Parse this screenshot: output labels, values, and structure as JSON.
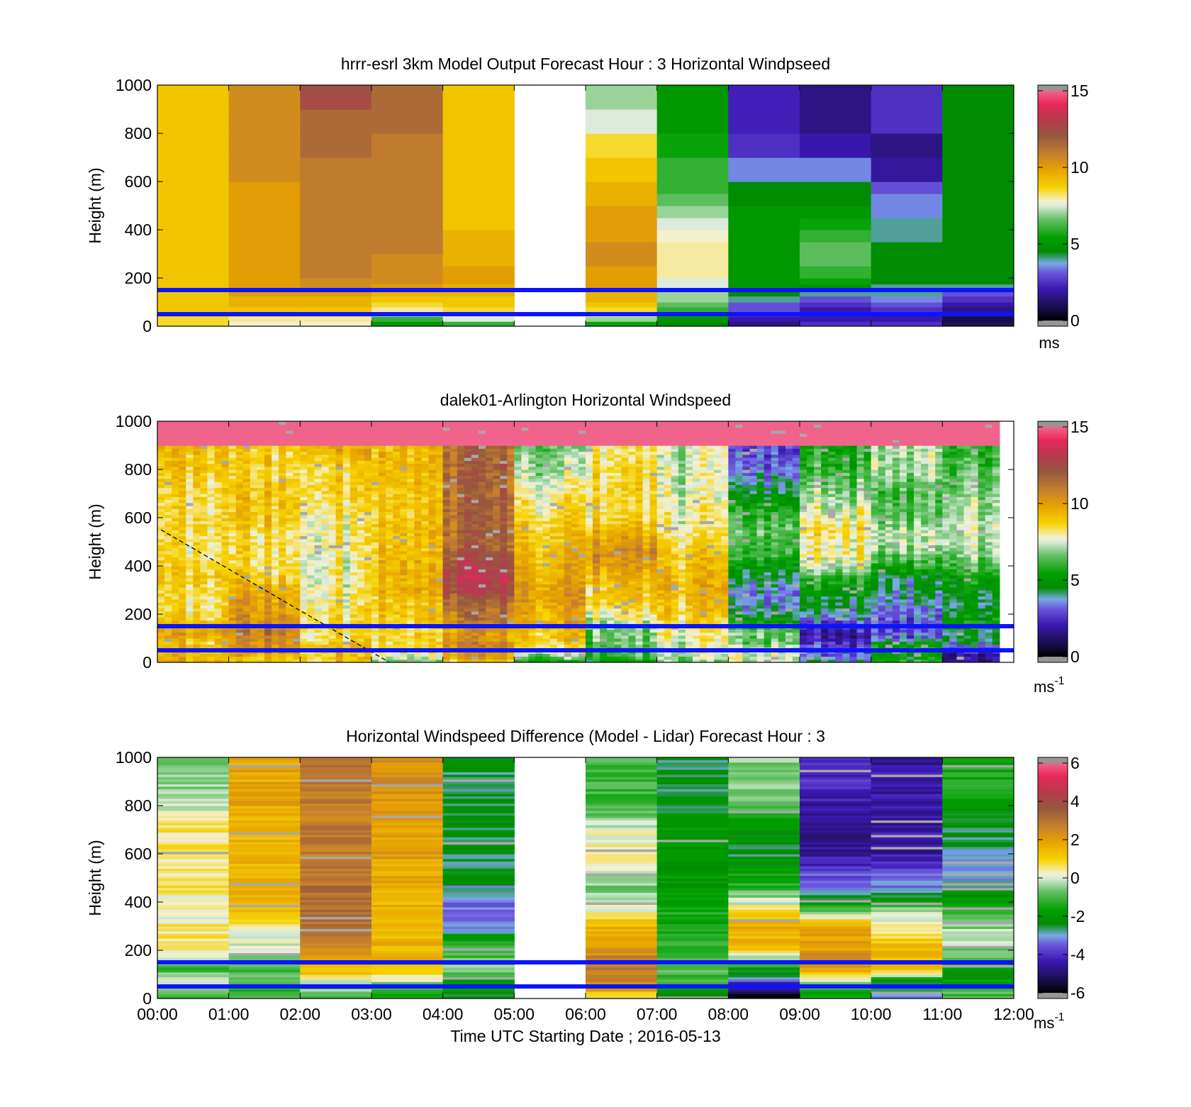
{
  "figure": {
    "xlabel": "Time UTC  Starting Date ; 2016-05-13",
    "x_tick_labels": [
      "00:00",
      "01:00",
      "02:00",
      "03:00",
      "04:00",
      "05:00",
      "06:00",
      "07:00",
      "08:00",
      "09:00",
      "10:00",
      "11:00",
      "12:00"
    ]
  },
  "chart_data": [
    {
      "type": "heatmap",
      "title": "hrrr-esrl 3km Model Output   Forecast Hour : 3 Horizontal Windpseed",
      "ylabel": "Height (m)",
      "xlim": [
        0,
        12
      ],
      "ylim": [
        0,
        1000
      ],
      "y_tick_labels": [
        "0",
        "200",
        "400",
        "600",
        "800",
        "1000"
      ],
      "colorbar": {
        "range": [
          0,
          15
        ],
        "tick_labels": [
          "0",
          "5",
          "10",
          "15"
        ],
        "unit": "ms"
      },
      "reference_lines_m": [
        50,
        150
      ],
      "missing_hours": [
        5
      ],
      "grid_levels_m": [
        0,
        20,
        40,
        60,
        80,
        100,
        125,
        150,
        175,
        200,
        250,
        300,
        350,
        400,
        450,
        500,
        550,
        600,
        700,
        800,
        900,
        1000
      ],
      "hourly_profiles": [
        [
          8.5,
          8.5,
          8.8,
          9,
          9,
          9,
          9,
          9,
          9,
          9,
          9,
          9,
          9,
          9,
          9,
          9,
          9,
          9,
          9,
          9,
          9
        ],
        [
          7.8,
          8,
          8.5,
          9,
          9.5,
          9.5,
          10,
          10,
          10,
          10,
          10,
          10,
          10,
          10,
          10,
          10,
          10,
          10.5,
          10.5,
          10.5,
          10.5
        ],
        [
          7.8,
          8,
          8.3,
          9,
          9.5,
          9.5,
          10,
          10.5,
          10.5,
          11,
          11,
          11,
          11,
          11,
          11,
          11,
          11,
          11,
          11.5,
          11.5,
          12.5
        ],
        [
          5,
          6,
          7,
          8,
          8.5,
          9,
          9.5,
          10,
          10.5,
          10.5,
          10.5,
          11,
          11,
          11,
          11,
          11,
          11,
          11,
          11,
          11.5,
          11.5
        ],
        [
          6,
          7.5,
          8,
          8.5,
          9,
          9,
          9.5,
          9.5,
          10,
          10,
          9.5,
          9.5,
          9.5,
          9,
          9,
          9,
          9,
          9,
          9,
          9,
          9
        ],
        null,
        [
          5.5,
          7,
          8,
          8.5,
          9,
          9.5,
          9.5,
          10,
          10,
          10,
          10.5,
          10.5,
          10,
          10,
          10,
          9.5,
          9.5,
          9,
          8.5,
          7.5,
          7
        ],
        [
          4.5,
          5,
          5.5,
          6,
          6.5,
          7,
          7,
          7.5,
          7.5,
          8,
          8,
          8,
          7.8,
          7.5,
          7,
          6.5,
          6,
          6,
          5.5,
          5,
          5
        ],
        [
          1.5,
          2,
          2.5,
          3,
          3,
          4,
          4.5,
          5,
          5,
          5,
          5,
          5,
          5,
          5,
          5,
          4.5,
          4.5,
          3.5,
          2.5,
          2.2,
          2.2
        ],
        [
          2.5,
          2,
          2,
          2,
          2.5,
          3,
          4,
          5,
          5.5,
          6,
          6.5,
          6.5,
          6,
          5.5,
          5,
          4.5,
          4.5,
          3.5,
          2,
          1.5,
          1.5
        ],
        [
          2.5,
          2,
          2,
          2.5,
          3,
          3.5,
          4,
          4,
          4.5,
          4.5,
          4.5,
          4.5,
          4,
          4,
          3.5,
          3.5,
          3,
          1.8,
          1.5,
          2.5,
          2.5
        ],
        [
          1,
          0.8,
          1,
          1.5,
          2,
          2.5,
          3,
          4,
          4.5,
          4.5,
          4.5,
          4.5,
          4.5,
          4.5,
          4.5,
          4.5,
          4.5,
          4.5,
          4.5,
          4.5,
          4.5
        ]
      ]
    },
    {
      "type": "heatmap",
      "title": "dalek01-Arlington  Horizontal Windspeed",
      "ylabel": "Height (m)",
      "xlim": [
        0,
        12
      ],
      "ylim": [
        0,
        1000
      ],
      "y_tick_labels": [
        "0",
        "200",
        "400",
        "600",
        "800",
        "1000"
      ],
      "colorbar": {
        "range": [
          0,
          15
        ],
        "tick_labels": [
          "0",
          "5",
          "10",
          "15"
        ],
        "unit": "ms",
        "unit_exponent": "-1"
      },
      "reference_lines_m": [
        50,
        150
      ],
      "annotation_line": {
        "style": "dashed",
        "from": [
          0.05,
          550
        ],
        "to": [
          3.25,
          0
        ]
      },
      "lidar_coverage_hours": [
        0,
        11.85
      ]
    },
    {
      "type": "heatmap",
      "title": "Horizontal Windspeed Difference (Model - Lidar) Forecast Hour : 3",
      "ylabel": "Height (m)",
      "xlim": [
        0,
        12
      ],
      "ylim": [
        0,
        1000
      ],
      "y_tick_labels": [
        "0",
        "200",
        "400",
        "600",
        "800",
        "1000"
      ],
      "colorbar": {
        "range": [
          -6,
          6
        ],
        "tick_labels": [
          "-6",
          "-4",
          "-2",
          "0",
          "2",
          "4",
          "6"
        ],
        "unit": "ms",
        "unit_exponent": "-1"
      },
      "reference_lines_m": [
        50,
        150
      ],
      "missing_hours": [
        5
      ],
      "hourly_profiles": [
        [
          -1,
          -1,
          -0.5,
          -0.5,
          0,
          -0.5,
          -1,
          -0.5,
          0,
          0.5,
          0.5,
          0.5,
          0,
          0.3,
          0.5,
          0.5,
          0.5,
          0.5,
          0.5,
          0,
          -0.5
        ],
        [
          -1,
          -1,
          -1.5,
          -1.5,
          -1,
          -1,
          -1,
          -0.5,
          -0.5,
          0,
          0,
          0.5,
          1,
          1.5,
          1.5,
          1.5,
          1.5,
          1.5,
          1.5,
          1.8,
          1.8
        ],
        [
          -1,
          -1,
          -0.5,
          -0.5,
          0.5,
          1,
          1.5,
          1.5,
          2,
          2.5,
          2.8,
          3,
          3,
          3,
          3,
          3,
          2.8,
          2.8,
          2.8,
          2.8,
          2.8
        ],
        [
          -1.5,
          -1.5,
          -1,
          -1,
          0,
          0.5,
          1,
          1.5,
          1.5,
          1.5,
          1.5,
          1.5,
          1.5,
          1.5,
          1.8,
          1.8,
          1.8,
          2,
          2,
          2.2,
          2.2
        ],
        [
          -2.5,
          -2.5,
          -2,
          -2,
          -1.5,
          -1,
          -0.5,
          -0.5,
          -1,
          -1,
          -2,
          -3,
          -3.5,
          -3.5,
          -3,
          -2.5,
          -2.5,
          -2.5,
          -2.5,
          -2.5,
          -2.5
        ],
        null,
        [
          1,
          1,
          2,
          2.5,
          2.5,
          2.8,
          2.8,
          2.8,
          2.5,
          2,
          1.5,
          1.5,
          0.5,
          0,
          -0.5,
          -0.5,
          0,
          0.5,
          0,
          -1,
          -1
        ],
        [
          -2,
          -2,
          -2,
          -1.5,
          -1,
          -1,
          -1,
          -1,
          -1,
          -1,
          -1,
          -1.5,
          -1.5,
          -1.5,
          -2,
          -2,
          -2,
          -2,
          -2,
          -2.5,
          -2.5
        ],
        [
          -5.5,
          -5.5,
          -5,
          -4.5,
          -3.5,
          -2.5,
          -2,
          -1,
          0,
          1,
          1.5,
          1.5,
          1,
          0,
          -1,
          -1.5,
          -2,
          -2.5,
          -2,
          -1,
          -0.5
        ],
        [
          -1.5,
          -1.5,
          -1,
          -1,
          0,
          1,
          2,
          2.5,
          2.5,
          2,
          2,
          1.5,
          0,
          -2,
          -3,
          -3.5,
          -4,
          -4.5,
          -5,
          -4.5,
          -4
        ],
        [
          -3,
          -3,
          -3,
          -3,
          -2,
          0.5,
          1,
          1.5,
          1.5,
          1.5,
          1,
          0.5,
          0,
          -1.5,
          -3,
          -3.5,
          -4,
          -4.5,
          -4.5,
          -4.5,
          -4.5
        ],
        [
          -1,
          -1,
          -1,
          -1.5,
          -2,
          -2,
          -1.5,
          -1,
          -1,
          -0.5,
          0,
          -0.5,
          -1,
          -2,
          -2.5,
          -3,
          -3,
          -3,
          -2.5,
          -2,
          -1.5
        ]
      ]
    }
  ]
}
